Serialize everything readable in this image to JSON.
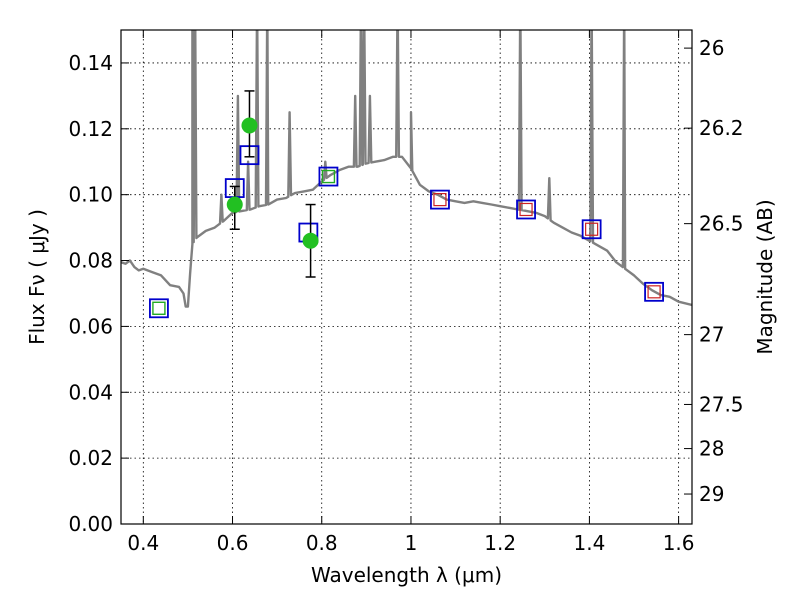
{
  "chart_data": {
    "type": "scatter",
    "xlabel": "Wavelength  λ (μm)",
    "ylabel_left": "Flux  Fν  ( μJy )",
    "ylabel_right": "Magnitude (AB)",
    "xlim": [
      0.35,
      1.63
    ],
    "ylim": [
      0.0,
      0.15
    ],
    "grid": true,
    "x_ticks": [
      0.4,
      0.6,
      0.8,
      1.0,
      1.2,
      1.4,
      1.6
    ],
    "x_tick_labels": [
      "0.4",
      "0.6",
      "0.8",
      "1",
      "1.2",
      "1.4",
      "1.6"
    ],
    "y_ticks": [
      0.0,
      0.02,
      0.04,
      0.06,
      0.08,
      0.1,
      0.12,
      0.14
    ],
    "y_tick_labels": [
      "0.00",
      "0.02",
      "0.04",
      "0.06",
      "0.08",
      "0.10",
      "0.12",
      "0.14"
    ],
    "mag_ticks": [
      {
        "flux": 0.1445,
        "label": "26"
      },
      {
        "flux": 0.1202,
        "label": "26.2"
      },
      {
        "flux": 0.0912,
        "label": "26.5"
      },
      {
        "flux": 0.0575,
        "label": "27"
      },
      {
        "flux": 0.0363,
        "label": "27.5"
      },
      {
        "flux": 0.0229,
        "label": "28"
      },
      {
        "flux": 0.0091,
        "label": "29"
      }
    ],
    "colors": {
      "spectrum": "#808080",
      "observed": "#22c022",
      "model_box": "#0000cc",
      "green_box": "#22aa22",
      "red_box": "#cc2222",
      "errorbar": "#000000"
    },
    "series": [
      {
        "style": "line",
        "points": [
          [
            0.35,
            0.0795
          ],
          [
            0.36,
            0.079
          ],
          [
            0.37,
            0.08
          ],
          [
            0.38,
            0.078
          ],
          [
            0.39,
            0.077
          ],
          [
            0.4,
            0.0775
          ],
          [
            0.42,
            0.0765
          ],
          [
            0.44,
            0.0755
          ],
          [
            0.46,
            0.0725
          ],
          [
            0.48,
            0.072
          ],
          [
            0.49,
            0.07
          ],
          [
            0.495,
            0.066
          ],
          [
            0.5,
            0.066
          ],
          [
            0.505,
            0.076
          ],
          [
            0.51,
            0.085
          ],
          [
            0.52,
            0.087
          ],
          [
            0.54,
            0.089
          ],
          [
            0.56,
            0.09
          ],
          [
            0.58,
            0.092
          ],
          [
            0.6,
            0.0945
          ],
          [
            0.62,
            0.095
          ],
          [
            0.64,
            0.0955
          ],
          [
            0.66,
            0.0965
          ],
          [
            0.68,
            0.097
          ],
          [
            0.7,
            0.0985
          ],
          [
            0.72,
            0.099
          ],
          [
            0.74,
            0.1005
          ],
          [
            0.76,
            0.101
          ],
          [
            0.78,
            0.1015
          ],
          [
            0.8,
            0.104
          ],
          [
            0.82,
            0.106
          ],
          [
            0.84,
            0.1075
          ],
          [
            0.86,
            0.1085
          ],
          [
            0.88,
            0.1085
          ],
          [
            0.9,
            0.1095
          ],
          [
            0.92,
            0.11
          ],
          [
            0.94,
            0.1105
          ],
          [
            0.96,
            0.1115
          ],
          [
            0.98,
            0.1115
          ],
          [
            1.0,
            0.108
          ],
          [
            1.02,
            0.103
          ],
          [
            1.04,
            0.101
          ],
          [
            1.06,
            0.1
          ],
          [
            1.08,
            0.0985
          ],
          [
            1.1,
            0.098
          ],
          [
            1.12,
            0.0975
          ],
          [
            1.14,
            0.098
          ],
          [
            1.16,
            0.0975
          ],
          [
            1.18,
            0.097
          ],
          [
            1.2,
            0.0965
          ],
          [
            1.22,
            0.096
          ],
          [
            1.24,
            0.0955
          ],
          [
            1.26,
            0.095
          ],
          [
            1.28,
            0.0945
          ],
          [
            1.3,
            0.0935
          ],
          [
            1.32,
            0.0915
          ],
          [
            1.34,
            0.09
          ],
          [
            1.36,
            0.0885
          ],
          [
            1.38,
            0.0875
          ],
          [
            1.4,
            0.086
          ],
          [
            1.42,
            0.0845
          ],
          [
            1.44,
            0.083
          ],
          [
            1.46,
            0.0795
          ],
          [
            1.48,
            0.0775
          ],
          [
            1.5,
            0.0755
          ],
          [
            1.52,
            0.073
          ],
          [
            1.54,
            0.071
          ],
          [
            1.56,
            0.0695
          ],
          [
            1.58,
            0.069
          ],
          [
            1.6,
            0.0675
          ],
          [
            1.63,
            0.0665
          ]
        ],
        "emission_lines": [
          {
            "x": 0.51,
            "peak": 0.16
          },
          {
            "x": 0.516,
            "peak": 0.16
          },
          {
            "x": 0.575,
            "peak": 0.1
          },
          {
            "x": 0.612,
            "peak": 0.13
          },
          {
            "x": 0.635,
            "peak": 0.11
          },
          {
            "x": 0.655,
            "peak": 0.16
          },
          {
            "x": 0.678,
            "peak": 0.16
          },
          {
            "x": 0.728,
            "peak": 0.125
          },
          {
            "x": 0.808,
            "peak": 0.11
          },
          {
            "x": 0.875,
            "peak": 0.13
          },
          {
            "x": 0.888,
            "peak": 0.16
          },
          {
            "x": 0.895,
            "peak": 0.16
          },
          {
            "x": 0.908,
            "peak": 0.13
          },
          {
            "x": 0.97,
            "peak": 0.16
          },
          {
            "x": 1.0,
            "peak": 0.125
          },
          {
            "x": 1.245,
            "peak": 0.16
          },
          {
            "x": 1.31,
            "peak": 0.105
          },
          {
            "x": 1.405,
            "peak": 0.16
          },
          {
            "x": 1.478,
            "peak": 0.16
          }
        ]
      },
      {
        "style": "points",
        "points": [
          {
            "x": 0.605,
            "y": 0.097,
            "yerr": [
              0.0895,
              0.1025
            ]
          },
          {
            "x": 0.638,
            "y": 0.121,
            "yerr": [
              0.1115,
              0.1315
            ]
          },
          {
            "x": 0.775,
            "y": 0.086,
            "yerr": [
              0.075,
              0.097
            ]
          }
        ]
      },
      {
        "style": "model-boxes",
        "points": [
          {
            "x": 0.435,
            "y": 0.0655,
            "inner": "green"
          },
          {
            "x": 0.605,
            "y": 0.102,
            "inner": "none"
          },
          {
            "x": 0.638,
            "y": 0.112,
            "inner": "none"
          },
          {
            "x": 0.77,
            "y": 0.0885,
            "inner": "none"
          },
          {
            "x": 0.815,
            "y": 0.1055,
            "inner": "green"
          },
          {
            "x": 1.065,
            "y": 0.0985,
            "inner": "red"
          },
          {
            "x": 1.258,
            "y": 0.0955,
            "inner": "red"
          },
          {
            "x": 1.405,
            "y": 0.0895,
            "inner": "red"
          },
          {
            "x": 1.545,
            "y": 0.0705,
            "inner": "red"
          }
        ]
      }
    ]
  }
}
